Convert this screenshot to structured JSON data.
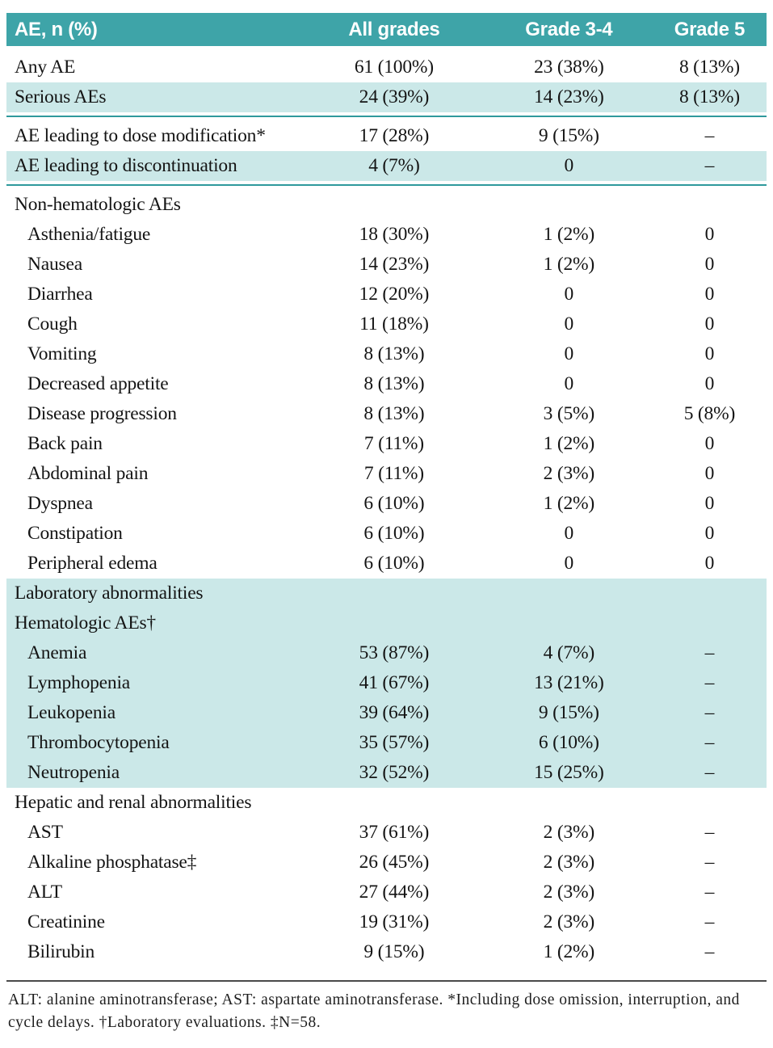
{
  "colors": {
    "header-bg": "#3EA4A8",
    "shade-bg": "#CBE8E8",
    "rule": "#2F999C",
    "foot-rule": "#4a4a4a"
  },
  "table": {
    "header": {
      "col0": "AE, n (%)",
      "col1": "All grades",
      "col2": "Grade 3-4",
      "col3": "Grade 5"
    },
    "rows": [
      {
        "label": "Any AE",
        "all": "61 (100%)",
        "g34": "23 (38%)",
        "g5": "8 (13%)"
      },
      {
        "label": "Serious AEs",
        "all": "24 (39%)",
        "g34": "14 (23%)",
        "g5": "8 (13%)",
        "shade": true
      },
      {
        "type": "rule"
      },
      {
        "label": "AE leading to dose modification*",
        "all": "17 (28%)",
        "g34": "9 (15%)",
        "g5": "–"
      },
      {
        "label": "AE leading to discontinuation",
        "all": "4 (7%)",
        "g34": "0",
        "g5": "–",
        "shade": true
      },
      {
        "type": "rule"
      },
      {
        "label": "Non-hematologic AEs",
        "section": true
      },
      {
        "label": "Asthenia/fatigue",
        "all": "18 (30%)",
        "g34": "1 (2%)",
        "g5": "0",
        "indent": true
      },
      {
        "label": "Nausea",
        "all": "14 (23%)",
        "g34": "1 (2%)",
        "g5": "0",
        "indent": true
      },
      {
        "label": "Diarrhea",
        "all": "12 (20%)",
        "g34": "0",
        "g5": "0",
        "indent": true
      },
      {
        "label": "Cough",
        "all": "11 (18%)",
        "g34": "0",
        "g5": "0",
        "indent": true
      },
      {
        "label": "Vomiting",
        "all": "8 (13%)",
        "g34": "0",
        "g5": "0",
        "indent": true
      },
      {
        "label": "Decreased appetite",
        "all": "8 (13%)",
        "g34": "0",
        "g5": "0",
        "indent": true
      },
      {
        "label": "Disease progression",
        "all": "8 (13%)",
        "g34": "3 (5%)",
        "g5": "5 (8%)",
        "indent": true
      },
      {
        "label": "Back pain",
        "all": "7 (11%)",
        "g34": "1 (2%)",
        "g5": "0",
        "indent": true
      },
      {
        "label": "Abdominal pain",
        "all": "7 (11%)",
        "g34": "2 (3%)",
        "g5": "0",
        "indent": true
      },
      {
        "label": "Dyspnea",
        "all": "6 (10%)",
        "g34": "1 (2%)",
        "g5": "0",
        "indent": true
      },
      {
        "label": "Constipation",
        "all": "6 (10%)",
        "g34": "0",
        "g5": "0",
        "indent": true
      },
      {
        "label": "Peripheral edema",
        "all": "6 (10%)",
        "g34": "0",
        "g5": "0",
        "indent": true
      },
      {
        "label": "Laboratory abnormalities",
        "section": true,
        "shade": true
      },
      {
        "label": "Hematologic AEs†",
        "section": true,
        "shade": true
      },
      {
        "label": "Anemia",
        "all": "53 (87%)",
        "g34": "4 (7%)",
        "g5": "–",
        "indent": true,
        "shade": true
      },
      {
        "label": "Lymphopenia",
        "all": "41 (67%)",
        "g34": "13 (21%)",
        "g5": "–",
        "indent": true,
        "shade": true
      },
      {
        "label": "Leukopenia",
        "all": "39 (64%)",
        "g34": "9 (15%)",
        "g5": "–",
        "indent": true,
        "shade": true
      },
      {
        "label": "Thrombocytopenia",
        "all": "35 (57%)",
        "g34": "6 (10%)",
        "g5": "–",
        "indent": true,
        "shade": true
      },
      {
        "label": "Neutropenia",
        "all": "32 (52%)",
        "g34": "15 (25%)",
        "g5": "–",
        "indent": true,
        "shade": true
      },
      {
        "label": "Hepatic and renal abnormalities",
        "section": true
      },
      {
        "label": "AST",
        "all": "37 (61%)",
        "g34": "2 (3%)",
        "g5": "–",
        "indent": true
      },
      {
        "label": "Alkaline phosphatase‡",
        "all": "26 (45%)",
        "g34": "2 (3%)",
        "g5": "–",
        "indent": true
      },
      {
        "label": "ALT",
        "all": "27 (44%)",
        "g34": "2 (3%)",
        "g5": "–",
        "indent": true
      },
      {
        "label": "Creatinine",
        "all": "19 (31%)",
        "g34": "2 (3%)",
        "g5": "–",
        "indent": true
      },
      {
        "label": "Bilirubin",
        "all": "9 (15%)",
        "g34": "1 (2%)",
        "g5": "–",
        "indent": true
      }
    ],
    "footnote": "ALT: alanine aminotransferase; AST: aspartate aminotransferase. *Including dose omission, interruption, and cycle delays. †Laboratory evaluations. ‡N=58."
  }
}
